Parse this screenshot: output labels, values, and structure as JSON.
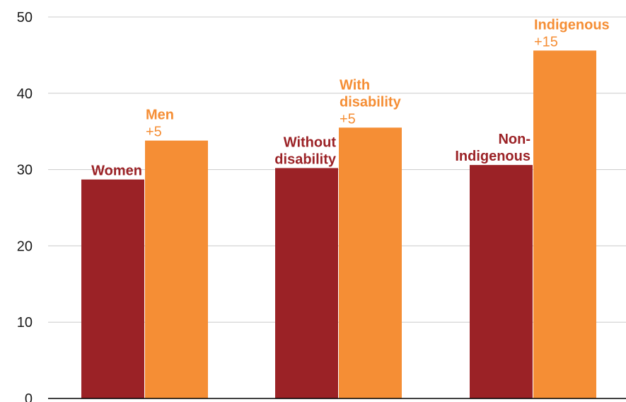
{
  "chart_data": {
    "type": "bar",
    "ylim": [
      0,
      50
    ],
    "yticks": [
      "0",
      "10",
      "20",
      "30",
      "40",
      "50"
    ],
    "grid": true,
    "colors": {
      "dark": "#9b2226",
      "light": "#f58e35",
      "grid": "#cccccc",
      "axis": "#000000"
    },
    "groups": [
      {
        "bars": [
          {
            "label_lines": [
              "Women"
            ],
            "value": 28.7,
            "color": "dark"
          },
          {
            "label_lines": [
              "Men"
            ],
            "diff": "+5",
            "value": 33.8,
            "color": "light"
          }
        ]
      },
      {
        "bars": [
          {
            "label_lines": [
              "Without",
              "disability"
            ],
            "value": 30.2,
            "color": "dark"
          },
          {
            "label_lines": [
              "With",
              "disability"
            ],
            "diff": "+5",
            "value": 35.5,
            "color": "light"
          }
        ]
      },
      {
        "bars": [
          {
            "label_lines": [
              "Non-",
              "Indigenous"
            ],
            "value": 30.6,
            "color": "dark"
          },
          {
            "label_lines": [
              "Indigenous"
            ],
            "diff": "+15",
            "value": 45.6,
            "color": "light"
          }
        ]
      }
    ]
  }
}
